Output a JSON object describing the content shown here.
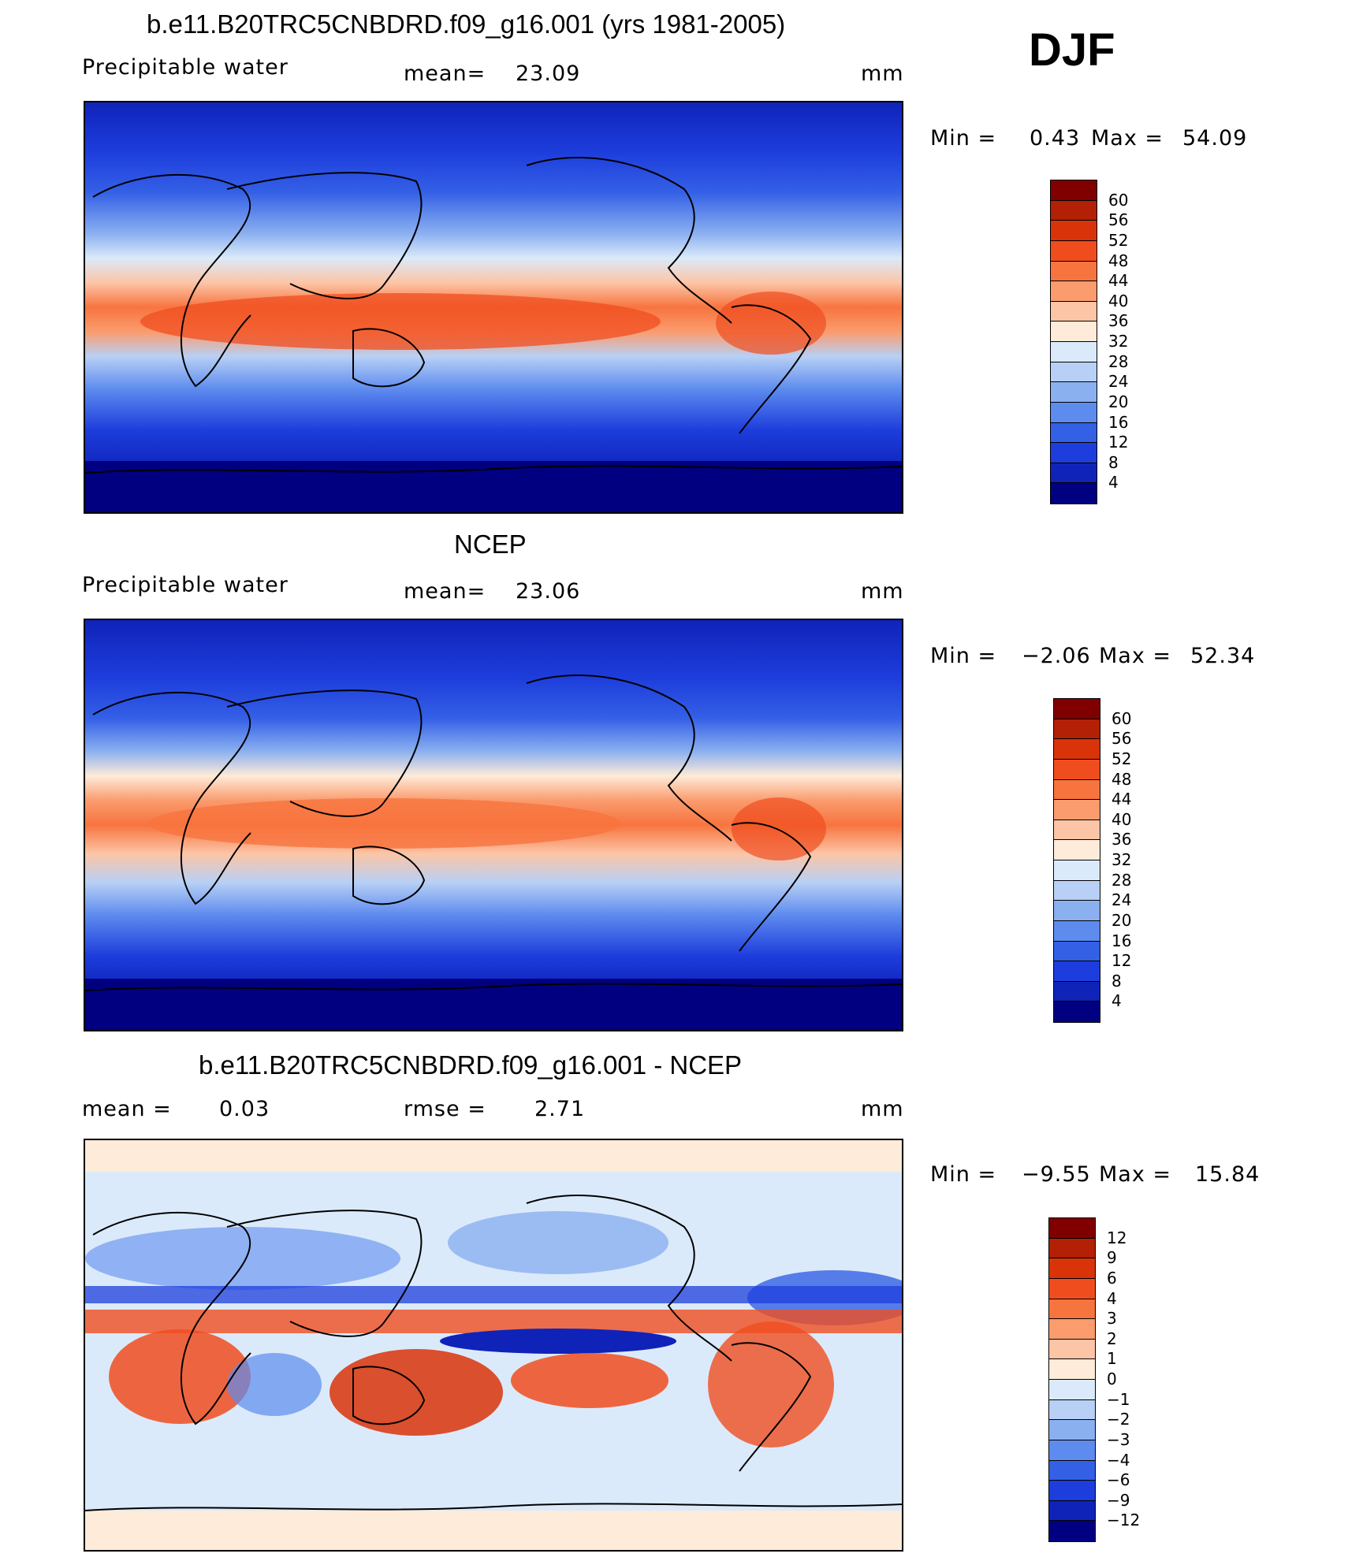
{
  "season": "DJF",
  "panels": [
    {
      "id": "model",
      "title": "b.e11.B20TRC5CNBDRD.f09_g16.001 (yrs 1981-2005)",
      "left_label": "Precipitable  water",
      "stat1": "mean=",
      "stat1_value": "23.09",
      "stat2": "",
      "stat2_value": "",
      "units": "mm",
      "min_label": "Min =",
      "min_value": "0.43",
      "max_label": "Max =",
      "max_value": "54.09",
      "colorbar_labels": [
        "60",
        "56",
        "52",
        "48",
        "44",
        "40",
        "36",
        "32",
        "28",
        "24",
        "20",
        "16",
        "12",
        "8",
        "4"
      ]
    },
    {
      "id": "obs",
      "title": "NCEP",
      "left_label": "Precipitable  water",
      "stat1": "mean=",
      "stat1_value": "23.06",
      "stat2": "",
      "stat2_value": "",
      "units": "mm",
      "min_label": "Min =",
      "min_value": "−2.06",
      "max_label": "Max =",
      "max_value": "52.34",
      "colorbar_labels": [
        "60",
        "56",
        "52",
        "48",
        "44",
        "40",
        "36",
        "32",
        "28",
        "24",
        "20",
        "16",
        "12",
        "8",
        "4"
      ]
    },
    {
      "id": "diff",
      "title": "b.e11.B20TRC5CNBDRD.f09_g16.001 - NCEP",
      "left_label": "mean =",
      "left_value": "0.03",
      "stat1": "rmse =",
      "stat1_value": "2.71",
      "units": "mm",
      "min_label": "Min =",
      "min_value": "−9.55",
      "max_label": "Max =",
      "max_value": "15.84",
      "colorbar_labels": [
        "12",
        "9",
        "6",
        "4",
        "3",
        "2",
        "1",
        "0",
        "−1",
        "−2",
        "−3",
        "−4",
        "−6",
        "−9",
        "−12"
      ]
    }
  ],
  "palette": [
    "#800000",
    "#b22006",
    "#d93409",
    "#f04d1f",
    "#f7743f",
    "#fa9c6e",
    "#fcc5a6",
    "#feebd9",
    "#dbeafa",
    "#b8d0f5",
    "#8bb0f0",
    "#5d8bee",
    "#3460e6",
    "#1d3ddc",
    "#0f23b9",
    "#000080"
  ]
}
